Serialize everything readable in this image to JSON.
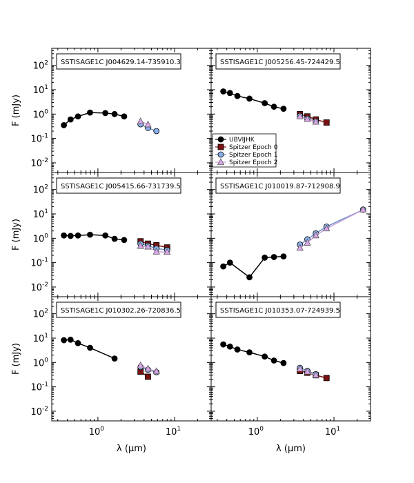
{
  "chart_data": {
    "type": "scatter",
    "xscale": "log",
    "yscale": "log",
    "xlim": [
      0.25,
      30
    ],
    "ylim": [
      0.004,
      500
    ],
    "xlabel": "λ (μm)",
    "ylabel": "F (mJy)",
    "x_tick_labels": [
      "10^0",
      "10^1"
    ],
    "y_tick_labels": [
      "10^-2",
      "10^-1",
      "10^0",
      "10^1",
      "10^2"
    ],
    "legend": {
      "location": "panel 2, lower-left",
      "entries": [
        {
          "name": "UBVIJHK",
          "color": "#000000",
          "marker": "circle"
        },
        {
          "name": "Spitzer Epoch 0",
          "color": "#7a1010",
          "marker": "square"
        },
        {
          "name": "Spitzer Epoch 1",
          "color": "#8aaee8",
          "marker": "circle"
        },
        {
          "name": "Spitzer Epoch 2",
          "color": "#d9a6e8",
          "marker": "triangle"
        }
      ]
    },
    "panels": [
      {
        "title": "SSTISAGE1C J004629.14-735910.3",
        "series": [
          {
            "name": "UBVIJHK",
            "x": [
              0.36,
              0.44,
              0.55,
              0.79,
              1.25,
              1.65,
              2.2
            ],
            "y": [
              0.35,
              0.6,
              0.8,
              1.15,
              1.1,
              1.0,
              0.8
            ]
          },
          {
            "name": "Spitzer Epoch 1",
            "x": [
              3.6,
              4.5,
              5.8
            ],
            "y": [
              0.38,
              0.27,
              0.2
            ]
          },
          {
            "name": "Spitzer Epoch 2",
            "x": [
              3.6,
              4.5
            ],
            "y": [
              0.5,
              0.37
            ]
          }
        ]
      },
      {
        "title": "SSTISAGE1C J005256.45-724429.5",
        "series": [
          {
            "name": "UBVIJHK",
            "x": [
              0.36,
              0.44,
              0.55,
              0.79,
              1.25,
              1.65,
              2.2
            ],
            "y": [
              8.5,
              7.3,
              5.5,
              4.3,
              2.8,
              2.0,
              1.65
            ]
          },
          {
            "name": "Spitzer Epoch 0",
            "x": [
              3.6,
              4.5,
              5.8,
              8.0
            ],
            "y": [
              1.0,
              0.8,
              0.6,
              0.45
            ]
          },
          {
            "name": "Spitzer Epoch 1",
            "x": [
              3.6,
              4.5,
              5.8
            ],
            "y": [
              0.85,
              0.65,
              0.5
            ]
          },
          {
            "name": "Spitzer Epoch 2",
            "x": [
              3.6,
              4.5,
              5.8
            ],
            "y": [
              0.8,
              0.62,
              0.48
            ]
          }
        ]
      },
      {
        "title": "SSTISAGE1C J005415.66-731739.5",
        "series": [
          {
            "name": "UBVIJHK",
            "x": [
              0.36,
              0.44,
              0.55,
              0.79,
              1.25,
              1.65,
              2.2
            ],
            "y": [
              1.3,
              1.25,
              1.3,
              1.4,
              1.3,
              0.95,
              0.85
            ]
          },
          {
            "name": "Spitzer Epoch 0",
            "x": [
              3.6,
              4.5,
              5.8,
              8.0
            ],
            "y": [
              0.75,
              0.6,
              0.52,
              0.42
            ]
          },
          {
            "name": "Spitzer Epoch 1",
            "x": [
              3.6,
              4.5,
              5.8,
              8.0
            ],
            "y": [
              0.6,
              0.5,
              0.38,
              0.33
            ]
          },
          {
            "name": "Spitzer Epoch 2",
            "x": [
              3.6,
              4.5,
              5.8,
              8.0
            ],
            "y": [
              0.48,
              0.45,
              0.28,
              0.27
            ]
          }
        ]
      },
      {
        "title": "SSTISAGE1C J010019.87-712908.9",
        "series": [
          {
            "name": "UBVIJHK",
            "x": [
              0.36,
              0.44,
              0.79,
              1.25,
              1.65,
              2.2
            ],
            "y": [
              0.07,
              0.1,
              0.025,
              0.16,
              0.17,
              0.18
            ]
          },
          {
            "name": "Spitzer Epoch 1",
            "x": [
              3.6,
              4.5,
              5.8,
              8.0,
              24.0
            ],
            "y": [
              0.55,
              0.9,
              1.6,
              3.0,
              15.0
            ]
          },
          {
            "name": "Spitzer Epoch 2",
            "x": [
              3.6,
              4.5,
              5.8,
              8.0,
              24.0
            ],
            "y": [
              0.4,
              0.65,
              1.3,
              2.5,
              15.0
            ]
          }
        ]
      },
      {
        "title": "SSTISAGE1C J010302.26-720836.5",
        "series": [
          {
            "name": "UBVIJHK",
            "x": [
              0.36,
              0.44,
              0.55,
              0.79,
              1.65
            ],
            "y": [
              8.2,
              8.6,
              6.2,
              4.0,
              1.45
            ]
          },
          {
            "name": "Spitzer Epoch 0",
            "x": [
              3.6,
              4.5
            ],
            "y": [
              0.42,
              0.26
            ]
          },
          {
            "name": "Spitzer Epoch 1",
            "x": [
              3.6,
              4.5,
              5.8
            ],
            "y": [
              0.65,
              0.5,
              0.4
            ]
          },
          {
            "name": "Spitzer Epoch 2",
            "x": [
              3.6,
              4.5,
              5.8
            ],
            "y": [
              0.75,
              0.55,
              0.43
            ]
          }
        ]
      },
      {
        "title": "SSTISAGE1C J010353.07-724939.5",
        "series": [
          {
            "name": "UBVIJHK",
            "x": [
              0.36,
              0.44,
              0.55,
              0.79,
              1.25,
              1.65,
              2.2
            ],
            "y": [
              5.5,
              4.5,
              3.4,
              2.6,
              1.75,
              1.2,
              0.95
            ]
          },
          {
            "name": "Spitzer Epoch 0",
            "x": [
              3.6,
              4.5,
              5.8,
              8.0
            ],
            "y": [
              0.45,
              0.38,
              0.3,
              0.23
            ]
          },
          {
            "name": "Spitzer Epoch 1",
            "x": [
              3.6,
              4.5,
              5.8
            ],
            "y": [
              0.6,
              0.45,
              0.33
            ]
          },
          {
            "name": "Spitzer Epoch 2",
            "x": [
              3.6,
              4.5,
              5.8
            ],
            "y": [
              0.55,
              0.42,
              0.3
            ]
          }
        ]
      }
    ]
  }
}
